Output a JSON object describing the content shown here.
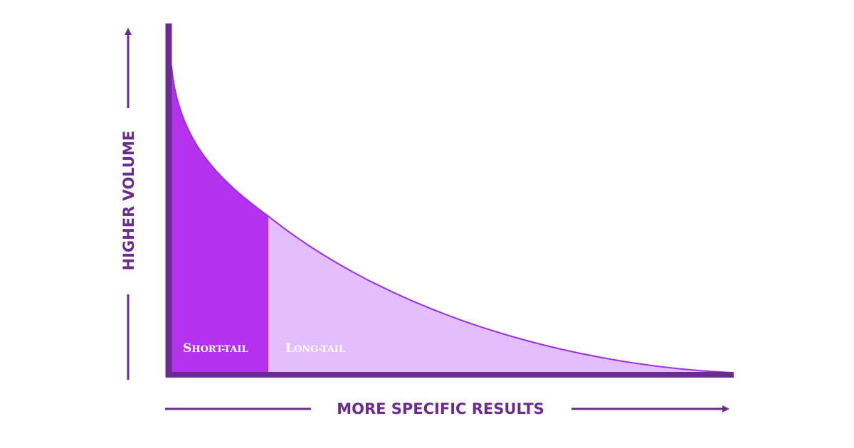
{
  "diagram": {
    "y_axis_title": "HIGHER VOLUME",
    "x_axis_title": "MORE SPECIFIC RESULTS",
    "regions": [
      {
        "id": "short",
        "label_first": "S",
        "label_rest": "HORT-TAIL",
        "color": "#b432ee"
      },
      {
        "id": "long",
        "label_first": "L",
        "label_rest": "ONG-TAIL",
        "color": "#e3bdfc"
      }
    ],
    "colors": {
      "axis": "#6a2c8e",
      "arrow": "#6a2c8e",
      "curve_edge": "#8a2be2"
    }
  }
}
